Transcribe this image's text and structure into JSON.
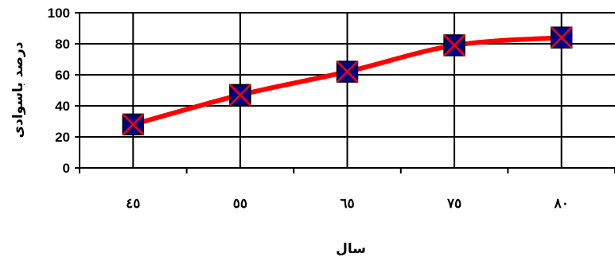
{
  "chart_data": {
    "type": "line",
    "categories": [
      "٤٥",
      "٥٥",
      "٦٥",
      "٧٥",
      "٨٠"
    ],
    "series": [
      {
        "values": [
          28,
          47,
          62,
          79,
          84
        ]
      }
    ],
    "xlabel": "سال",
    "ylabel": "درصد باسوادی",
    "ylim": [
      0,
      100
    ],
    "yticks": [
      0,
      20,
      40,
      60,
      80,
      100
    ],
    "grid": true,
    "legend": "none",
    "line_color": "#ff0000",
    "marker_fill": "#000080",
    "marker_cross": "#ff0000"
  }
}
